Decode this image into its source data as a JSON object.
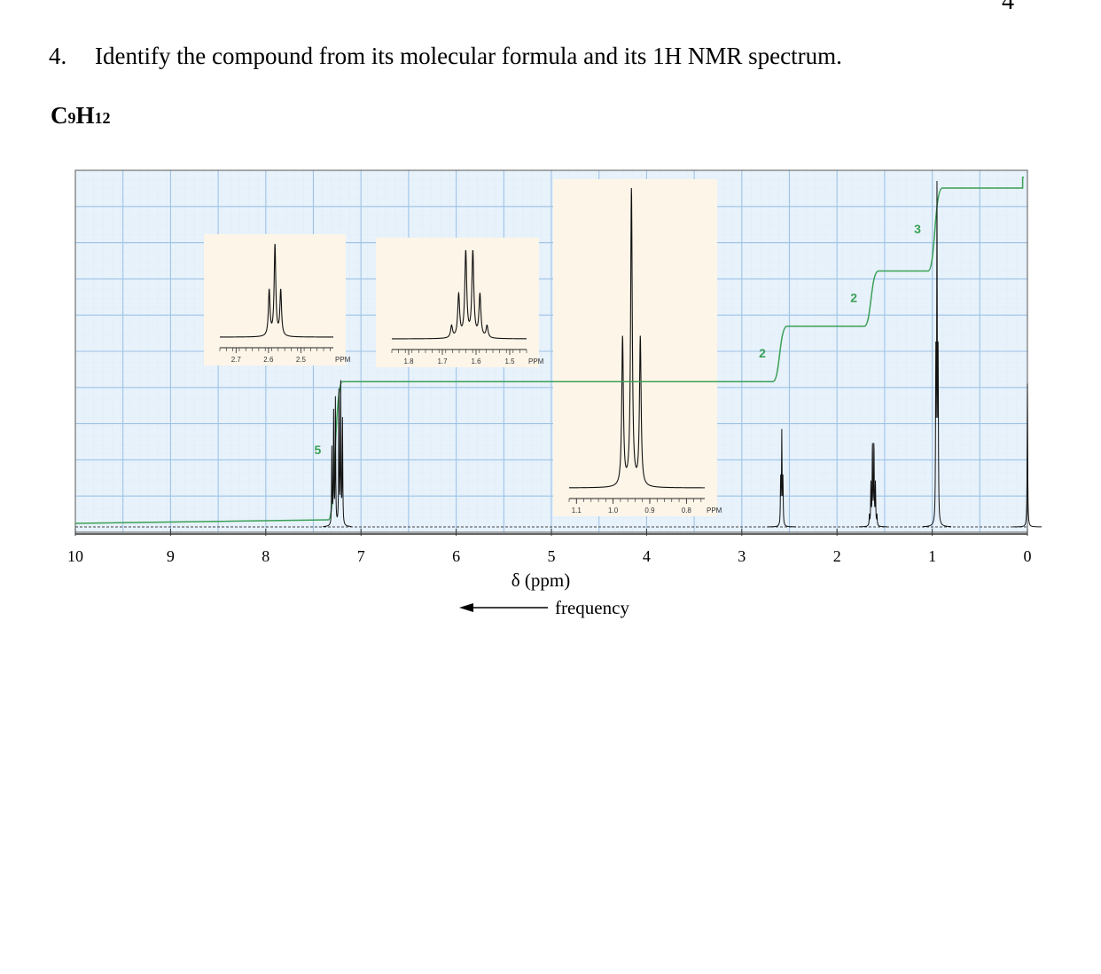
{
  "page_number": "4",
  "question": {
    "number": "4.",
    "text": "Identify the compound from its molecular formula and its 1H NMR spectrum."
  },
  "formula": {
    "c": "C",
    "c_sub": "9",
    "h": "H",
    "h_sub": "12"
  },
  "chart_data": {
    "type": "line",
    "title": "",
    "xlabel": "δ (ppm)",
    "direction_label": "frequency",
    "xlim": [
      10,
      0
    ],
    "x_ticks": [
      "10",
      "9",
      "8",
      "7",
      "6",
      "5",
      "4",
      "3",
      "2",
      "1",
      "0"
    ],
    "grid": true,
    "colors": {
      "spectrum": "#111111",
      "integral": "#3aa055",
      "grid": "#9ec3e6",
      "grid_bg": "#e8f2fb",
      "inset_bg": "#fdf5e8"
    },
    "peaks": [
      {
        "shift": 7.25,
        "multiplicity": "multiplet",
        "integration": "5",
        "height": 0.42
      },
      {
        "shift": 2.58,
        "multiplicity": "triplet",
        "integration": "2",
        "height": 0.28
      },
      {
        "shift": 1.62,
        "multiplicity": "sextet",
        "integration": "2",
        "height": 0.24
      },
      {
        "shift": 0.95,
        "multiplicity": "triplet",
        "integration": "3",
        "height": 0.99
      },
      {
        "shift": 0.0,
        "multiplicity": "singlet",
        "integration": "",
        "height": 0.41
      }
    ],
    "insets": [
      {
        "ticks": [
          "2.7",
          "2.6",
          "2.5"
        ],
        "unit": "PPM",
        "range": [
          2.75,
          2.4
        ],
        "peak_center": 2.58,
        "multiplicity": "triplet"
      },
      {
        "ticks": [
          "1.8",
          "1.7",
          "1.6",
          "1.5"
        ],
        "unit": "PPM",
        "range": [
          1.85,
          1.45
        ],
        "peak_center": 1.62,
        "multiplicity": "sextet"
      },
      {
        "ticks": [
          "1.1",
          "1.0",
          "0.9",
          "0.8"
        ],
        "unit": "PPM",
        "range": [
          1.12,
          0.75
        ],
        "peak_center": 0.95,
        "multiplicity": "triplet"
      }
    ]
  }
}
